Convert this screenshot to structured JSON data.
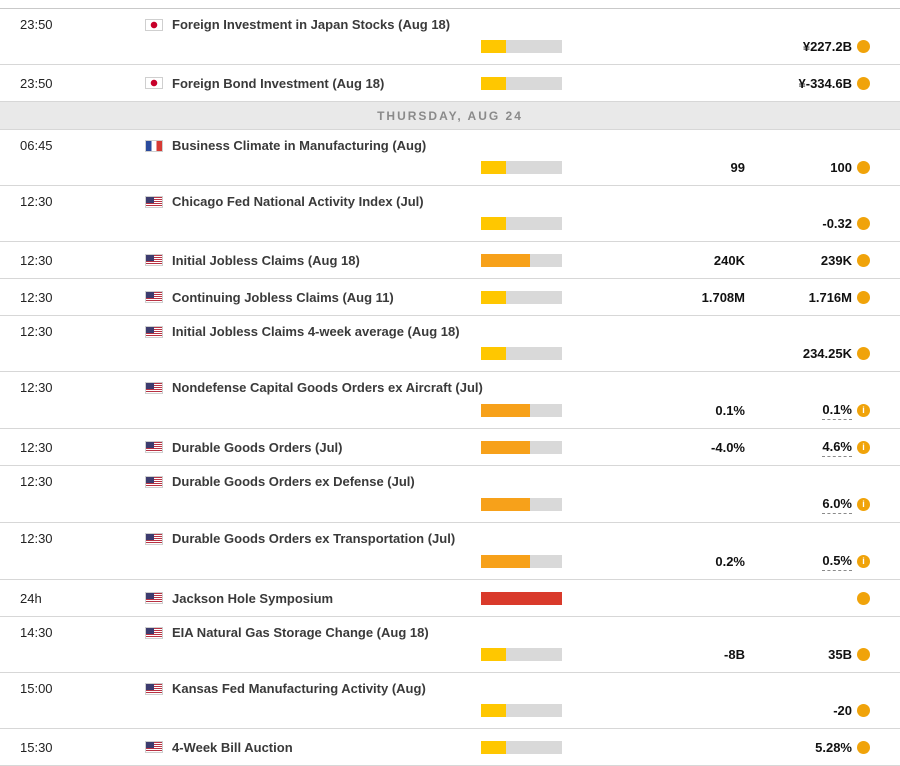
{
  "importance": {
    "colors": {
      "low": "#FFC700",
      "medium": "#F7A11A",
      "high": "#D93A2B"
    },
    "widths": {
      "low": "31%",
      "medium": "60%",
      "high": "100%"
    },
    "track_color": "#D9D9D9"
  },
  "icons": {
    "info_glyph": "i",
    "info_color": "#F0A30A",
    "flag_names": {
      "jp": "japan-flag",
      "fr": "france-flag",
      "us": "united-states-flag"
    }
  },
  "rows": [
    {
      "type": "event",
      "time": "23:50",
      "country": "Japan",
      "flag": "jp",
      "event": "Foreign Investment in Japan Stocks (Aug 18)",
      "importance": "low",
      "layout": "stacked",
      "consensus": "",
      "previous": "¥227.2B",
      "previous_note": false
    },
    {
      "type": "event",
      "time": "23:50",
      "country": "Japan",
      "flag": "jp",
      "event": "Foreign Bond Investment (Aug 18)",
      "importance": "low",
      "layout": "inline",
      "consensus": "",
      "previous": "¥-334.6B",
      "previous_note": false
    },
    {
      "type": "day",
      "label": "THURSDAY, AUG 24"
    },
    {
      "type": "event",
      "time": "06:45",
      "country": "France",
      "flag": "fr",
      "event": "Business Climate in Manufacturing (Aug)",
      "importance": "low",
      "layout": "stacked",
      "consensus": "99",
      "previous": "100",
      "previous_note": false
    },
    {
      "type": "event",
      "time": "12:30",
      "country": "United States",
      "flag": "us",
      "event": "Chicago Fed National Activity Index (Jul)",
      "importance": "low",
      "layout": "stacked",
      "consensus": "",
      "previous": "-0.32",
      "previous_note": false
    },
    {
      "type": "event",
      "time": "12:30",
      "country": "United States",
      "flag": "us",
      "event": "Initial Jobless Claims (Aug 18)",
      "importance": "medium",
      "layout": "inline",
      "consensus": "240K",
      "previous": "239K",
      "previous_note": false
    },
    {
      "type": "event",
      "time": "12:30",
      "country": "United States",
      "flag": "us",
      "event": "Continuing Jobless Claims (Aug 11)",
      "importance": "low",
      "layout": "inline",
      "consensus": "1.708M",
      "previous": "1.716M",
      "previous_note": false
    },
    {
      "type": "event",
      "time": "12:30",
      "country": "United States",
      "flag": "us",
      "event": "Initial Jobless Claims 4-week average (Aug 18)",
      "importance": "low",
      "layout": "stacked",
      "consensus": "",
      "previous": "234.25K",
      "previous_note": false
    },
    {
      "type": "event",
      "time": "12:30",
      "country": "United States",
      "flag": "us",
      "event": "Nondefense Capital Goods Orders ex Aircraft (Jul)",
      "importance": "medium",
      "layout": "stacked",
      "consensus": "0.1%",
      "previous": "0.1%",
      "previous_note": true
    },
    {
      "type": "event",
      "time": "12:30",
      "country": "United States",
      "flag": "us",
      "event": "Durable Goods Orders (Jul)",
      "importance": "medium",
      "layout": "inline",
      "consensus": "-4.0%",
      "previous": "4.6%",
      "previous_note": true
    },
    {
      "type": "event",
      "time": "12:30",
      "country": "United States",
      "flag": "us",
      "event": "Durable Goods Orders ex Defense (Jul)",
      "importance": "medium",
      "layout": "stacked",
      "consensus": "",
      "previous": "6.0%",
      "previous_note": true
    },
    {
      "type": "event",
      "time": "12:30",
      "country": "United States",
      "flag": "us",
      "event": "Durable Goods Orders ex Transportation (Jul)",
      "importance": "medium",
      "layout": "stacked",
      "consensus": "0.2%",
      "previous": "0.5%",
      "previous_note": true
    },
    {
      "type": "event",
      "time": "24h",
      "country": "United States",
      "flag": "us",
      "event": "Jackson Hole Symposium",
      "importance": "high",
      "layout": "inline",
      "consensus": "",
      "previous": "",
      "previous_note": false
    },
    {
      "type": "event",
      "time": "14:30",
      "country": "United States",
      "flag": "us",
      "event": "EIA Natural Gas Storage Change (Aug 18)",
      "importance": "low",
      "layout": "stacked",
      "consensus": "-8B",
      "previous": "35B",
      "previous_note": false
    },
    {
      "type": "event",
      "time": "15:00",
      "country": "United States",
      "flag": "us",
      "event": "Kansas Fed Manufacturing Activity (Aug)",
      "importance": "low",
      "layout": "stacked",
      "consensus": "",
      "previous": "-20",
      "previous_note": false
    },
    {
      "type": "event",
      "time": "15:30",
      "country": "United States",
      "flag": "us",
      "event": "4-Week Bill Auction",
      "importance": "low",
      "layout": "inline",
      "consensus": "",
      "previous": "5.28%",
      "previous_note": false
    }
  ]
}
